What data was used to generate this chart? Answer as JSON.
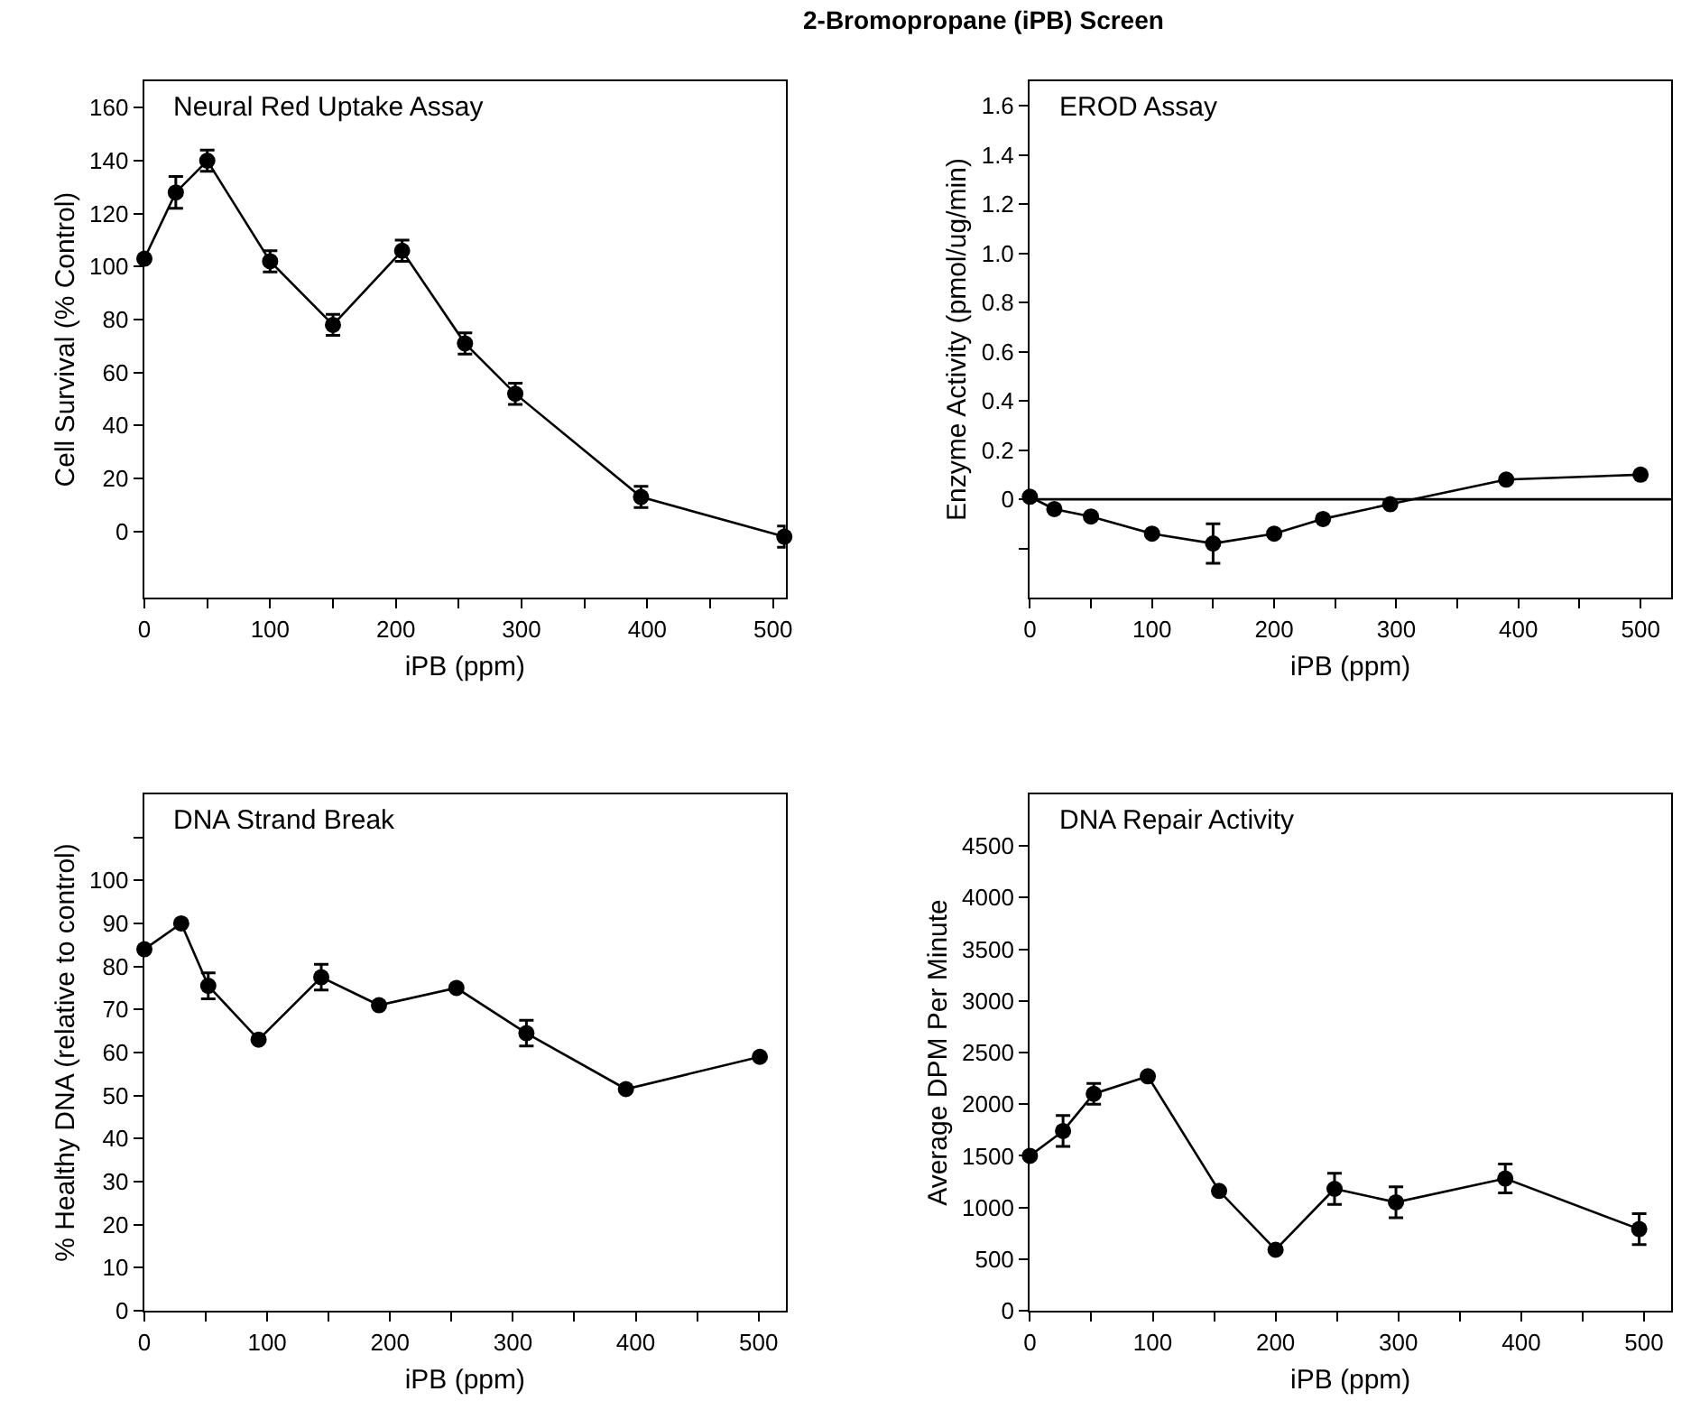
{
  "chart_data": [
    {
      "type": "line",
      "title": "Neural Red Uptake Assay",
      "xlabel": "iPB (ppm)",
      "ylabel": "Cell Survival (% Control)",
      "annotations": [
        "2-Bromopropane (iPB) Screen"
      ],
      "marker": "circle",
      "line_style": "solid",
      "x": [
        0,
        25,
        50,
        100,
        150,
        205,
        255,
        295,
        395,
        509
      ],
      "series": [
        {
          "color": "#000000",
          "values": [
            103,
            128,
            140,
            102,
            78,
            106,
            71,
            52,
            13,
            -2
          ],
          "errors": [
            null,
            6,
            4,
            4,
            4,
            4,
            4,
            4,
            4,
            4
          ]
        }
      ],
      "xlim": [
        0,
        510
      ],
      "xticks": [
        0,
        {
          "value": 50,
          "label": null
        },
        100,
        {
          "value": 150,
          "label": null
        },
        200,
        {
          "value": 250,
          "label": null
        },
        300,
        {
          "value": 350,
          "label": null
        },
        400,
        {
          "value": 450,
          "label": null
        },
        500
      ],
      "ylim": [
        -25,
        170
      ],
      "yticks": [
        0,
        20,
        40,
        60,
        80,
        100,
        120,
        140,
        160
      ]
    },
    {
      "type": "line",
      "title": "EROD Assay",
      "xlabel": "iPB (ppm)",
      "ylabel": "Enzyme Activity (pmol/ug/min)",
      "marker": "circle",
      "line_style": "solid",
      "x": [
        0,
        20,
        50,
        100,
        150,
        200,
        240,
        295,
        390,
        500
      ],
      "series": [
        {
          "color": "#000000",
          "values": [
            0.01,
            -0.04,
            -0.07,
            -0.14,
            -0.18,
            -0.14,
            -0.08,
            -0.02,
            0.08,
            0.1
          ],
          "errors": [
            null,
            null,
            null,
            null,
            0.08,
            null,
            null,
            null,
            null,
            null
          ]
        }
      ],
      "ref_lines": [
        {
          "axis": "y",
          "value": 0,
          "label": null,
          "color": "#000000"
        }
      ],
      "xlim": [
        0,
        525
      ],
      "xticks": [
        0,
        {
          "value": 50,
          "label": null
        },
        100,
        {
          "value": 150,
          "label": null
        },
        200,
        {
          "value": 250,
          "label": null
        },
        300,
        {
          "value": 350,
          "label": null
        },
        400,
        {
          "value": 450,
          "label": null
        },
        500
      ],
      "ylim": [
        -0.4,
        1.7
      ],
      "yticks": [
        {
          "value": -0.2,
          "label": null
        },
        0,
        0.2,
        0.4,
        0.6,
        0.8,
        {
          "value": 1.0,
          "label": "1.0"
        },
        1.2,
        1.4,
        1.6
      ]
    },
    {
      "type": "line",
      "title": "DNA Strand Break",
      "xlabel": "iPB (ppm)",
      "ylabel": "% Healthy DNA (relative to control)",
      "marker": "circle",
      "line_style": "solid",
      "x": [
        0,
        30,
        52,
        93,
        144,
        191,
        254,
        311,
        392,
        501
      ],
      "series": [
        {
          "color": "#000000",
          "values": [
            84,
            90,
            75.5,
            63,
            77.5,
            71,
            75,
            64.5,
            51.5,
            59
          ],
          "errors": [
            null,
            null,
            3,
            null,
            3,
            null,
            null,
            3,
            null,
            null
          ]
        }
      ],
      "xlim": [
        0,
        522
      ],
      "xticks": [
        0,
        {
          "value": 50,
          "label": null
        },
        100,
        {
          "value": 150,
          "label": null
        },
        200,
        {
          "value": 250,
          "label": null
        },
        300,
        {
          "value": 350,
          "label": null
        },
        400,
        {
          "value": 450,
          "label": null
        },
        500
      ],
      "ylim": [
        0,
        120
      ],
      "yticks": [
        0,
        10,
        20,
        30,
        40,
        50,
        60,
        70,
        80,
        90,
        100,
        {
          "value": 110,
          "label": null
        }
      ]
    },
    {
      "type": "line",
      "title": "DNA Repair Activity",
      "xlabel": "iPB (ppm)",
      "ylabel": "Average DPM Per Minute",
      "marker": "circle",
      "line_style": "solid",
      "x": [
        0,
        27,
        52,
        96,
        154,
        200,
        248,
        298,
        387,
        496
      ],
      "series": [
        {
          "color": "#000000",
          "values": [
            1500,
            1740,
            2100,
            2270,
            1160,
            590,
            1180,
            1050,
            1280,
            790
          ],
          "errors": [
            null,
            150,
            100,
            null,
            null,
            null,
            150,
            150,
            140,
            150
          ]
        }
      ],
      "xlim": [
        0,
        522
      ],
      "xticks": [
        0,
        {
          "value": 50,
          "label": null
        },
        100,
        {
          "value": 150,
          "label": null
        },
        200,
        {
          "value": 250,
          "label": null
        },
        300,
        {
          "value": 350,
          "label": null
        },
        400,
        {
          "value": 450,
          "label": null
        },
        500
      ],
      "ylim": [
        0,
        5000
      ],
      "yticks": [
        0,
        500,
        1000,
        1500,
        2000,
        2500,
        3000,
        3500,
        4000,
        4500
      ]
    }
  ]
}
